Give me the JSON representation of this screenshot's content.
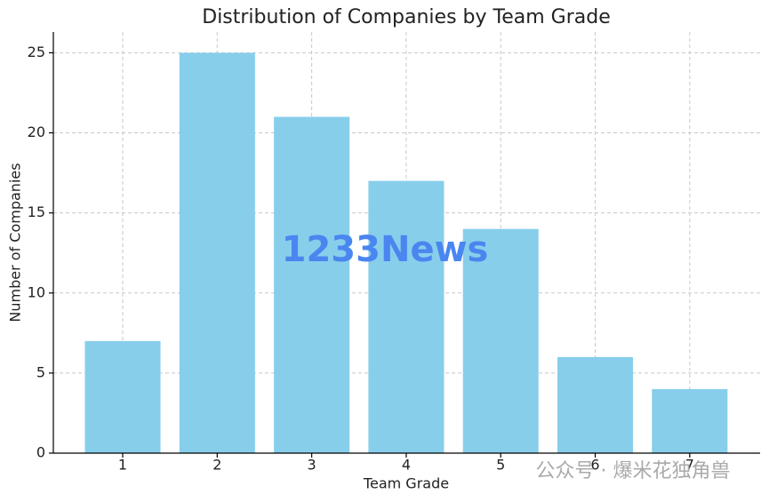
{
  "chart_data": {
    "type": "bar",
    "title": "Distribution of Companies by Team Grade",
    "x_label": "Team Grade",
    "y_label": "Number of Companies",
    "categories": [
      "1",
      "2",
      "3",
      "4",
      "5",
      "6",
      "7"
    ],
    "values": [
      7,
      25,
      21,
      17,
      14,
      6,
      4
    ],
    "color": "#87ceeb",
    "ylim": [
      0,
      26.3
    ],
    "yticks": [
      0,
      5,
      10,
      15,
      20,
      25
    ],
    "grid": true,
    "watermarks": [
      "1233News",
      "公众号 · 爆米花独角兽"
    ]
  }
}
